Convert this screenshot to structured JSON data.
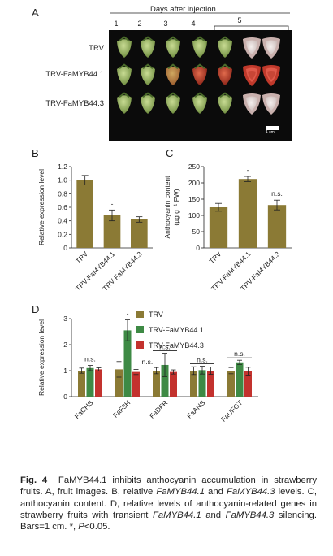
{
  "panels": {
    "a": "A",
    "b": "B",
    "c": "C",
    "d": "D"
  },
  "photo": {
    "top_label": "Days after injection",
    "days": [
      "1",
      "2",
      "3",
      "4",
      "5"
    ],
    "rows": [
      "TRV",
      "TRV-FaMYB44.1",
      "TRV-FaMYB44.3"
    ],
    "scale_bar": "1 cm",
    "colors": {
      "background": "#0b0b0b",
      "green_fruit": "#8fae5a",
      "red_fruit": "#b8392a",
      "white_fruit": "#e8e0df"
    }
  },
  "chart_data": [
    {
      "id": "B",
      "type": "bar",
      "ylabel": "Relative expression level",
      "categories": [
        "TRV",
        "TRV-FaMYB44.1",
        "TRV-FaMYB44.3"
      ],
      "values": [
        1.0,
        0.48,
        0.42
      ],
      "errors": [
        0.07,
        0.08,
        0.04
      ],
      "significance": [
        "",
        "-",
        "-"
      ],
      "ylim": [
        0,
        1.2
      ],
      "yticks": [
        "0",
        "0.2",
        "0.4",
        "0.6",
        "0.8",
        "1.0",
        "1.2"
      ],
      "bar_color": "#8b7a35"
    },
    {
      "id": "C",
      "type": "bar",
      "ylabel": "Anthocyanin content",
      "ylabel2": "(µg g⁻¹ FW)",
      "categories": [
        "TRV",
        "TRV-FaMYB44.1",
        "TRV-FaMYB44.3"
      ],
      "values": [
        125,
        212,
        132
      ],
      "errors": [
        12,
        8,
        15
      ],
      "significance": [
        "",
        "-",
        "n.s."
      ],
      "ylim": [
        0,
        250
      ],
      "yticks": [
        "0",
        "50",
        "100",
        "150",
        "200",
        "250"
      ],
      "bar_color": "#8b7a35"
    },
    {
      "id": "D",
      "type": "bar",
      "ylabel": "Relative expression level",
      "categories": [
        "FaCHS",
        "FaF3H",
        "FaDFR",
        "FaANS",
        "FaUFGT"
      ],
      "series": [
        {
          "name": "TRV",
          "values": [
            1.0,
            1.05,
            1.0,
            1.0,
            1.0
          ],
          "errors": [
            0.1,
            0.3,
            0.12,
            0.15,
            0.12
          ],
          "color": "#8b7a35"
        },
        {
          "name": "TRV-FaMYB44.1",
          "values": [
            1.1,
            2.55,
            1.22,
            1.02,
            1.32
          ],
          "errors": [
            0.1,
            0.4,
            0.45,
            0.15,
            0.08
          ],
          "color": "#3e8a45"
        },
        {
          "name": "TRV-FaMYB44.3",
          "values": [
            1.05,
            0.95,
            0.95,
            1.0,
            0.98
          ],
          "errors": [
            0.06,
            0.1,
            0.08,
            0.14,
            0.15
          ],
          "color": "#c3322e"
        }
      ],
      "annotations": [
        "n.s.",
        "-",
        "n.s.",
        "n.s.",
        "n.s."
      ],
      "f3h_extra": "n.s.",
      "ylim": [
        0,
        3
      ],
      "yticks": [
        "0",
        "1",
        "2",
        "3"
      ],
      "legend_position": "top-right"
    }
  ],
  "caption": {
    "fig": "Fig. 4",
    "line1": "FaMYB44.1 inhibits anthocyanin accumulation in strawberry fruits. A, fruit images. B, relative ",
    "gene1": "FaMYB44.1",
    "and1": " and ",
    "gene2": "FaMYB44.3",
    "part2": " levels. C, anthocyanin content. D, relative levels of anthocyanin-related genes in strawberry fruits with transient ",
    "gene3": "FaMYB44.1",
    "and2": " and ",
    "gene4": "FaMYB44.3",
    "part3": " silencing. Bars=1 cm. ",
    "star": "*",
    "part4": ", ",
    "p": "P",
    "part5": "<0.05."
  }
}
